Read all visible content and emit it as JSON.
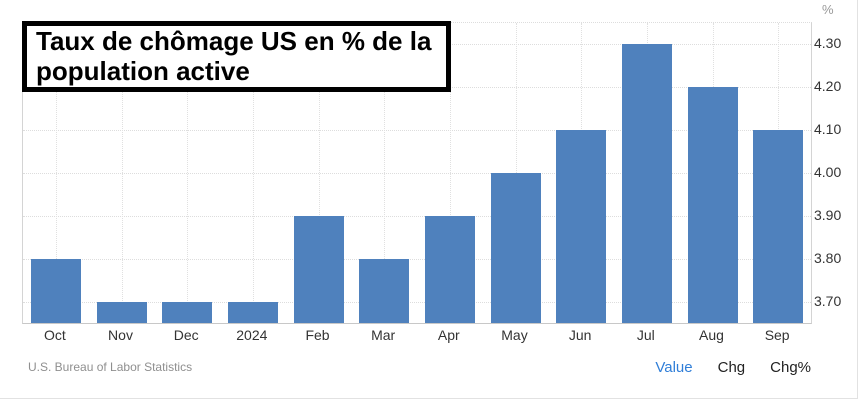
{
  "title": {
    "line1": "Taux de chômage US en % de la",
    "line2": "population active"
  },
  "chart_data": {
    "type": "bar",
    "title": "Taux de chômage US en % de la population active",
    "categories": [
      "Oct",
      "Nov",
      "Dec",
      "2024",
      "Feb",
      "Mar",
      "Apr",
      "May",
      "Jun",
      "Jul",
      "Aug",
      "Sep"
    ],
    "values": [
      3.8,
      3.7,
      3.7,
      3.7,
      3.9,
      3.8,
      3.9,
      4.0,
      4.1,
      4.3,
      4.2,
      4.1
    ],
    "xlabel": "",
    "ylabel": "%",
    "ylim": [
      3.65,
      4.35
    ],
    "yticks": [
      3.7,
      3.8,
      3.9,
      4.0,
      4.1,
      4.2,
      4.3
    ],
    "grid": true,
    "legend": "none",
    "bar_color": "#4f81bd"
  },
  "footer": {
    "source": "U.S. Bureau of Labor Statistics",
    "links": [
      {
        "label": "Value",
        "active": true
      },
      {
        "label": "Chg",
        "active": false
      },
      {
        "label": "Chg%",
        "active": false
      }
    ]
  },
  "colors": {
    "bar": "#4f81bd",
    "active_link": "#2f7ed8",
    "grid": "#dddddd",
    "axis": "#cccccc",
    "tick_label": "#333333",
    "muted": "#999999"
  }
}
